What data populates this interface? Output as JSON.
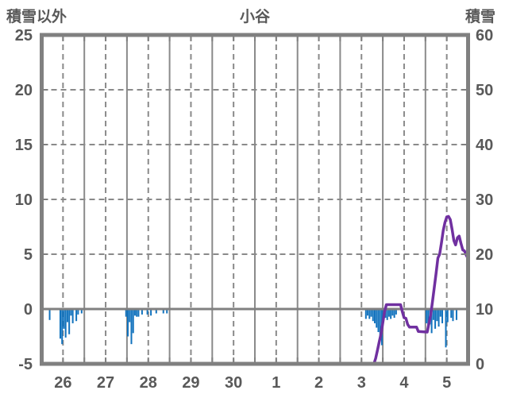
{
  "chart_data": {
    "type": "line+bar",
    "title": "小谷",
    "left_axis": {
      "title": "積雪以外",
      "tick_labels": [
        "25",
        "20",
        "15",
        "10",
        "5",
        "0",
        "-5"
      ],
      "tick_values": [
        25,
        20,
        15,
        10,
        5,
        0,
        -5
      ],
      "range": [
        -5,
        25
      ],
      "zero_line_value": 0
    },
    "right_axis": {
      "title": "積雪",
      "tick_labels": [
        "60",
        "50",
        "40",
        "30",
        "20",
        "10",
        "0"
      ],
      "tick_values": [
        60,
        50,
        40,
        30,
        20,
        10,
        0
      ],
      "range": [
        0,
        60
      ]
    },
    "x_axis": {
      "tick_labels": [
        "26",
        "27",
        "28",
        "29",
        "30",
        "1",
        "2",
        "3",
        "4",
        "5"
      ],
      "days": 10,
      "hours_per_day": 24
    },
    "grid": {
      "horizontal_dashed_values_left_axis": [
        20,
        15,
        10,
        5
      ],
      "vertical_solid_at_day_boundaries": true,
      "vertical_dashed_at_day_centers": true
    },
    "series": [
      {
        "name": "hourly-bars",
        "axis": "left",
        "type": "bar",
        "color": "#1172bd",
        "points": [
          [
            4,
            -1.0
          ],
          [
            10,
            -2.7
          ],
          [
            11,
            -3.2
          ],
          [
            12,
            -1.8
          ],
          [
            13,
            -2.6
          ],
          [
            14,
            -1.2
          ],
          [
            15,
            -2.3
          ],
          [
            16,
            -0.6
          ],
          [
            17,
            -1.3
          ],
          [
            19,
            -1.1
          ],
          [
            20,
            -0.5
          ],
          [
            22,
            -0.4
          ],
          [
            47,
            -0.7
          ],
          [
            48,
            -2.5
          ],
          [
            49,
            -1.2
          ],
          [
            50,
            -3.2
          ],
          [
            51,
            -2.2
          ],
          [
            52,
            -0.6
          ],
          [
            53,
            -0.7
          ],
          [
            54,
            -0.7
          ],
          [
            56,
            -0.5
          ],
          [
            59,
            -0.5
          ],
          [
            61,
            -0.6
          ],
          [
            64,
            -0.4
          ],
          [
            68,
            -0.4
          ],
          [
            70,
            -0.4
          ],
          [
            182,
            -0.9
          ],
          [
            183,
            -0.6
          ],
          [
            184,
            -0.9
          ],
          [
            185,
            -0.7
          ],
          [
            186,
            -1.1
          ],
          [
            187,
            -1.3
          ],
          [
            188,
            -1.7
          ],
          [
            189,
            -2.1
          ],
          [
            190,
            -2.6
          ],
          [
            191,
            -3.3
          ],
          [
            192,
            -1.0
          ],
          [
            193,
            -0.8
          ],
          [
            194,
            -1.0
          ],
          [
            195,
            -0.7
          ],
          [
            196,
            -0.9
          ],
          [
            197,
            -0.6
          ],
          [
            198,
            -0.8
          ],
          [
            199,
            -0.5
          ],
          [
            216,
            -1.3
          ],
          [
            217,
            -2.0
          ],
          [
            218,
            -1.4
          ],
          [
            219,
            -2.2
          ],
          [
            220,
            -1.0
          ],
          [
            221,
            -1.8
          ],
          [
            222,
            -1.1
          ],
          [
            223,
            -1.6
          ],
          [
            224,
            -0.7
          ],
          [
            225,
            -1.3
          ],
          [
            227,
            -3.5
          ],
          [
            228,
            -1.2
          ],
          [
            230,
            -0.8
          ],
          [
            231,
            -1.1
          ],
          [
            233,
            -1.0
          ]
        ]
      },
      {
        "name": "snow-depth-line",
        "axis": "right",
        "type": "line",
        "color": "#7030a0",
        "points": [
          [
            0,
            0
          ],
          [
            187,
            0
          ],
          [
            188,
            1
          ],
          [
            189,
            2.5
          ],
          [
            190,
            4
          ],
          [
            191,
            5.5
          ],
          [
            192,
            7.5
          ],
          [
            193,
            9.5
          ],
          [
            194,
            10.8
          ],
          [
            202,
            10.8
          ],
          [
            203,
            9.5
          ],
          [
            204,
            8.4
          ],
          [
            205,
            8.3
          ],
          [
            206,
            7.2
          ],
          [
            207,
            6.7
          ],
          [
            211,
            6.7
          ],
          [
            212,
            5.9
          ],
          [
            217,
            5.8
          ],
          [
            219,
            9
          ],
          [
            220,
            11.5
          ],
          [
            221,
            14
          ],
          [
            222,
            16.5
          ],
          [
            223,
            19.3
          ],
          [
            224,
            20
          ],
          [
            225,
            22
          ],
          [
            226,
            24.3
          ],
          [
            227,
            25.8
          ],
          [
            228,
            26.8
          ],
          [
            229,
            26.9
          ],
          [
            230,
            26.3
          ],
          [
            231,
            24.5
          ],
          [
            232,
            22.5
          ],
          [
            233,
            21.7
          ],
          [
            234,
            23
          ],
          [
            235,
            23.3
          ],
          [
            236,
            22
          ],
          [
            237,
            20.8
          ],
          [
            238,
            20.6
          ],
          [
            239,
            19.8
          ],
          [
            240,
            19.2
          ]
        ]
      }
    ],
    "colors": {
      "border": "#808080",
      "grid": "#8a8a8a",
      "zero_line": "#808080",
      "text": "#595959",
      "background": "#ffffff"
    }
  }
}
